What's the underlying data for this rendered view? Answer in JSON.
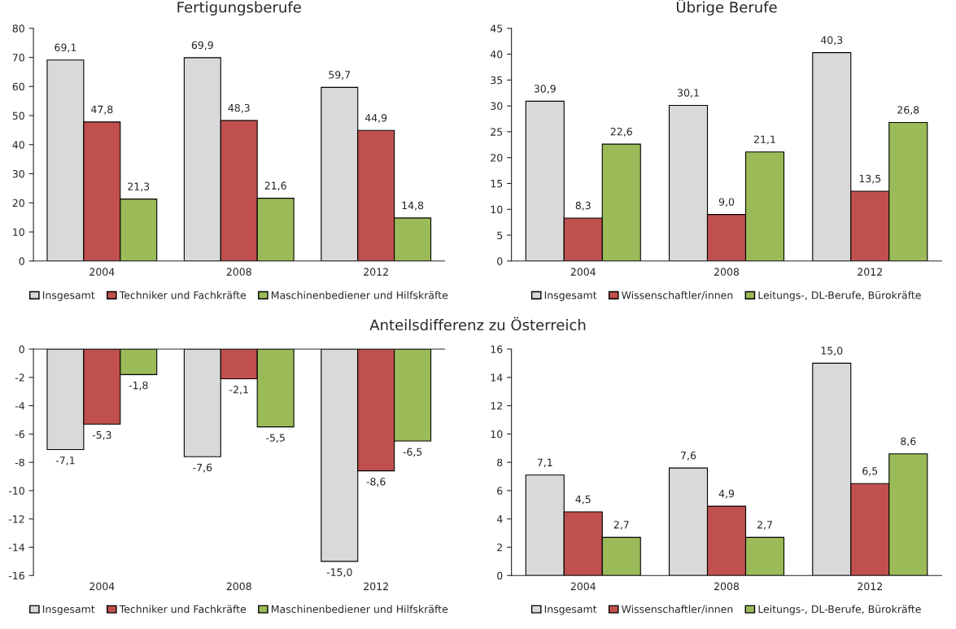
{
  "chart_data": [
    {
      "type": "bar",
      "title": "Fertigungsberufe",
      "categories": [
        "2004",
        "2008",
        "2012"
      ],
      "ylim": [
        0,
        80
      ],
      "yticks": [
        0,
        10,
        20,
        30,
        40,
        50,
        60,
        70,
        80
      ],
      "legend": "bottom",
      "series": [
        {
          "name": "Insgesamt",
          "color": "#d9d9d9",
          "values": [
            69.1,
            69.9,
            59.7
          ],
          "value_labels": [
            "69,1",
            "69,9",
            "59,7"
          ]
        },
        {
          "name": "Techniker und Fachkräfte",
          "color": "#c0504d",
          "values": [
            47.8,
            48.3,
            44.9
          ],
          "value_labels": [
            "47,8",
            "48,3",
            "44,9"
          ]
        },
        {
          "name": "Maschinenbediener und Hilfskräfte",
          "color": "#9bbb59",
          "values": [
            21.3,
            21.6,
            14.8
          ],
          "value_labels": [
            "21,3",
            "21,6",
            "14,8"
          ]
        }
      ]
    },
    {
      "type": "bar",
      "title": "Übrige Berufe",
      "categories": [
        "2004",
        "2008",
        "2012"
      ],
      "ylim": [
        0,
        45
      ],
      "yticks": [
        0,
        5,
        10,
        15,
        20,
        25,
        30,
        35,
        40,
        45
      ],
      "legend": "bottom",
      "series": [
        {
          "name": "Insgesamt",
          "color": "#d9d9d9",
          "values": [
            30.9,
            30.1,
            40.3
          ],
          "value_labels": [
            "30,9",
            "30,1",
            "40,3"
          ]
        },
        {
          "name": "Wissenschaftler/innen",
          "color": "#c0504d",
          "values": [
            8.3,
            9.0,
            13.5
          ],
          "value_labels": [
            "8,3",
            "9,0",
            "13,5"
          ]
        },
        {
          "name": "Leitungs-, DL-Berufe, Bürokräfte",
          "color": "#9bbb59",
          "values": [
            22.6,
            21.1,
            26.8
          ],
          "value_labels": [
            "22,6",
            "21,1",
            "26,8"
          ]
        }
      ]
    },
    {
      "type": "bar",
      "title": "Anteilsdifferenz zu Österreich",
      "categories": [
        "2004",
        "2008",
        "2012"
      ],
      "ylim": [
        -16,
        0
      ],
      "yticks": [
        -16,
        -14,
        -12,
        -10,
        -8,
        -6,
        -4,
        -2,
        0
      ],
      "legend": "bottom",
      "series": [
        {
          "name": "Insgesamt",
          "color": "#d9d9d9",
          "values": [
            -7.1,
            -7.6,
            -15.0
          ],
          "value_labels": [
            "-7,1",
            "-7,6",
            "-15,0"
          ]
        },
        {
          "name": "Techniker und Fachkräfte",
          "color": "#c0504d",
          "values": [
            -5.3,
            -2.1,
            -8.6
          ],
          "value_labels": [
            "-5,3",
            "-2,1",
            "-8,6"
          ]
        },
        {
          "name": "Maschinenbediener und Hilfskräfte",
          "color": "#9bbb59",
          "values": [
            -1.8,
            -5.5,
            -6.5
          ],
          "value_labels": [
            "-1,8",
            "-5,5",
            "-6,5"
          ]
        }
      ]
    },
    {
      "type": "bar",
      "categories": [
        "2004",
        "2008",
        "2012"
      ],
      "ylim": [
        0,
        16
      ],
      "yticks": [
        0,
        2,
        4,
        6,
        8,
        10,
        12,
        14,
        16
      ],
      "legend": "bottom",
      "series": [
        {
          "name": "Insgesamt",
          "color": "#d9d9d9",
          "values": [
            7.1,
            7.6,
            15.0
          ],
          "value_labels": [
            "7,1",
            "7,6",
            "15,0"
          ]
        },
        {
          "name": "Wissenschaftler/innen",
          "color": "#c0504d",
          "values": [
            4.5,
            4.9,
            6.5
          ],
          "value_labels": [
            "4,5",
            "4,9",
            "6,5"
          ]
        },
        {
          "name": "Leitungs-, DL-Berufe, Bürokräfte",
          "color": "#9bbb59",
          "values": [
            2.7,
            2.7,
            8.6
          ],
          "value_labels": [
            "2,7",
            "2,7",
            "8,6"
          ]
        }
      ]
    }
  ]
}
